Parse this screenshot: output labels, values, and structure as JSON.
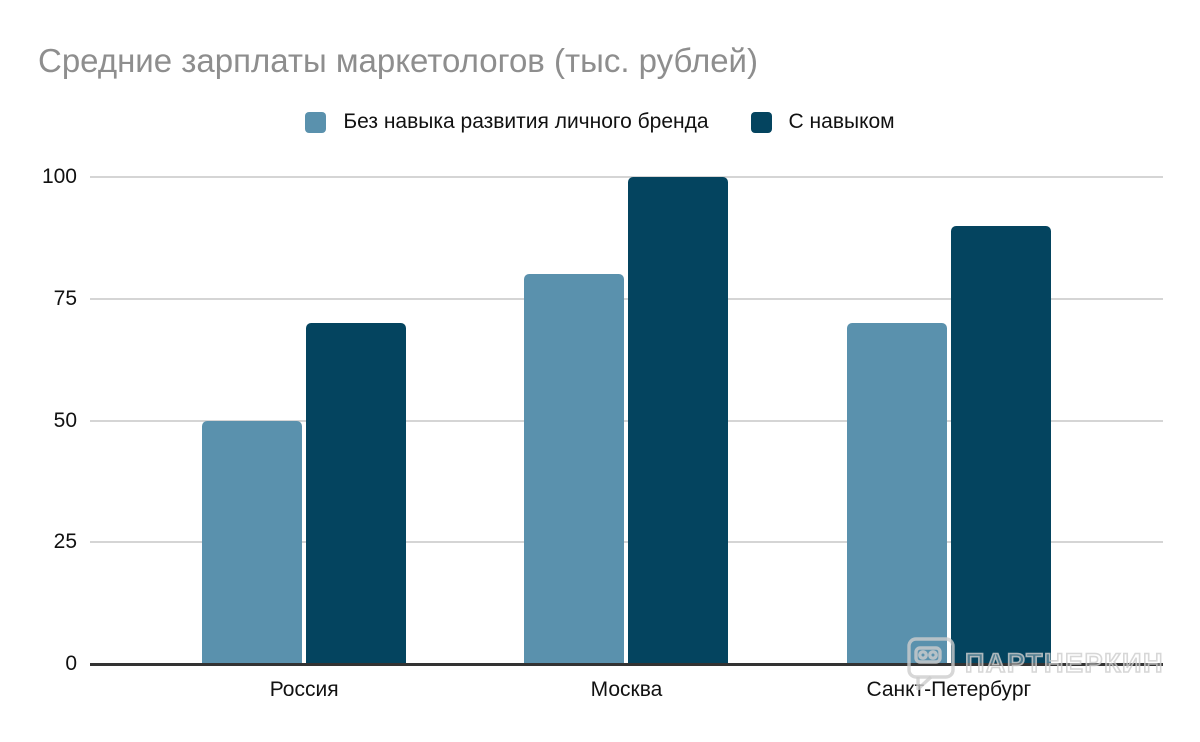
{
  "chart_data": {
    "type": "bar",
    "title": "Средние зарплаты маркетологов (тыс. рублей)",
    "categories": [
      "Россия",
      "Москва",
      "Санкт-Петербург"
    ],
    "series": [
      {
        "name": "Без навыка развития личного бренда",
        "color": "#5A91AD",
        "values": [
          50,
          80,
          70
        ]
      },
      {
        "name": "С навыком",
        "color": "#04445F",
        "values": [
          70,
          100,
          90
        ]
      }
    ],
    "xlabel": "",
    "ylabel": "",
    "ylim": [
      0,
      100
    ],
    "yticks": [
      0,
      25,
      50,
      75,
      100
    ],
    "grid": true,
    "legend_position": "top"
  },
  "watermark": {
    "text": "ПАРТНЕРКИН"
  },
  "colors": {
    "title": "#8e8e8e",
    "text": "#111111",
    "gridline": "#d5d5d5",
    "axis": "#333333",
    "watermark": "rgba(205,205,205,0.8)",
    "watermark_fill": "rgba(255,255,255,0.3)"
  }
}
